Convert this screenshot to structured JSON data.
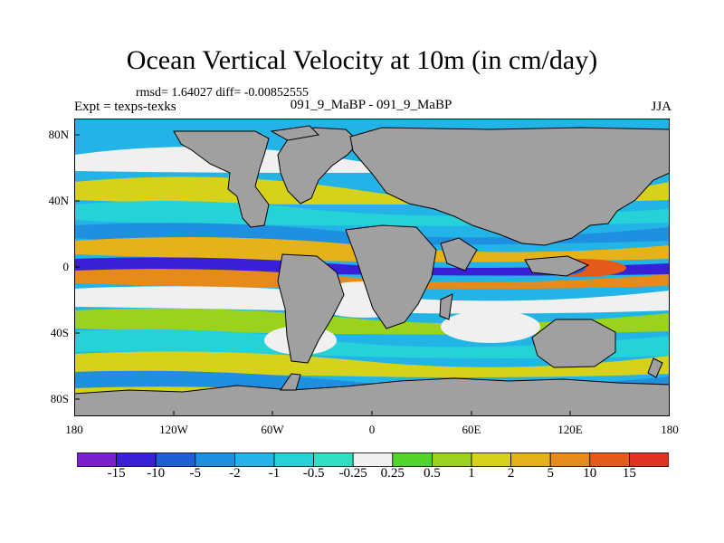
{
  "title": "Ocean Vertical Velocity at 10m (in cm/day)",
  "stats": "rmsd= 1.64027 diff= -0.00852555",
  "experiment": "Expt = texps-texks",
  "comparison": "091_9_MaBP - 091_9_MaBP",
  "season": "JJA",
  "y_ticks": [
    "80N",
    "40N",
    "0",
    "40S",
    "80S"
  ],
  "x_ticks": [
    "180",
    "120W",
    "60W",
    "0",
    "60E",
    "120E",
    "180"
  ],
  "colorbar": {
    "labels": [
      "-15",
      "-10",
      "-5",
      "-2",
      "-1",
      "-0.5",
      "-0.25",
      "0.25",
      "0.5",
      "1",
      "2",
      "5",
      "10",
      "15"
    ],
    "colors": [
      "#7b1fd0",
      "#3a1fd8",
      "#1f5fd6",
      "#1f8fe0",
      "#22b4e6",
      "#25d2d8",
      "#2ee0c0",
      "#f0f0f0",
      "#52d52a",
      "#9ad21e",
      "#d6d21a",
      "#e6b21a",
      "#e68a1a",
      "#e65a1a",
      "#e0321e"
    ]
  },
  "chart_data": {
    "type": "heatmap",
    "title": "Ocean Vertical Velocity at 10m (in cm/day)",
    "projection": "cylindrical equidistant",
    "xlim": [
      -180,
      180
    ],
    "ylim": [
      -90,
      90
    ],
    "x_ticks": [
      -180,
      -120,
      -60,
      0,
      60,
      120,
      180
    ],
    "y_ticks": [
      80,
      40,
      0,
      -40,
      -80
    ],
    "contour_levels": [
      -15,
      -10,
      -5,
      -2,
      -1,
      -0.5,
      -0.25,
      0.25,
      0.5,
      1,
      2,
      5,
      10,
      15
    ],
    "land_color": "#a0a0a0",
    "missing_value_color": "#f0f0f0"
  }
}
